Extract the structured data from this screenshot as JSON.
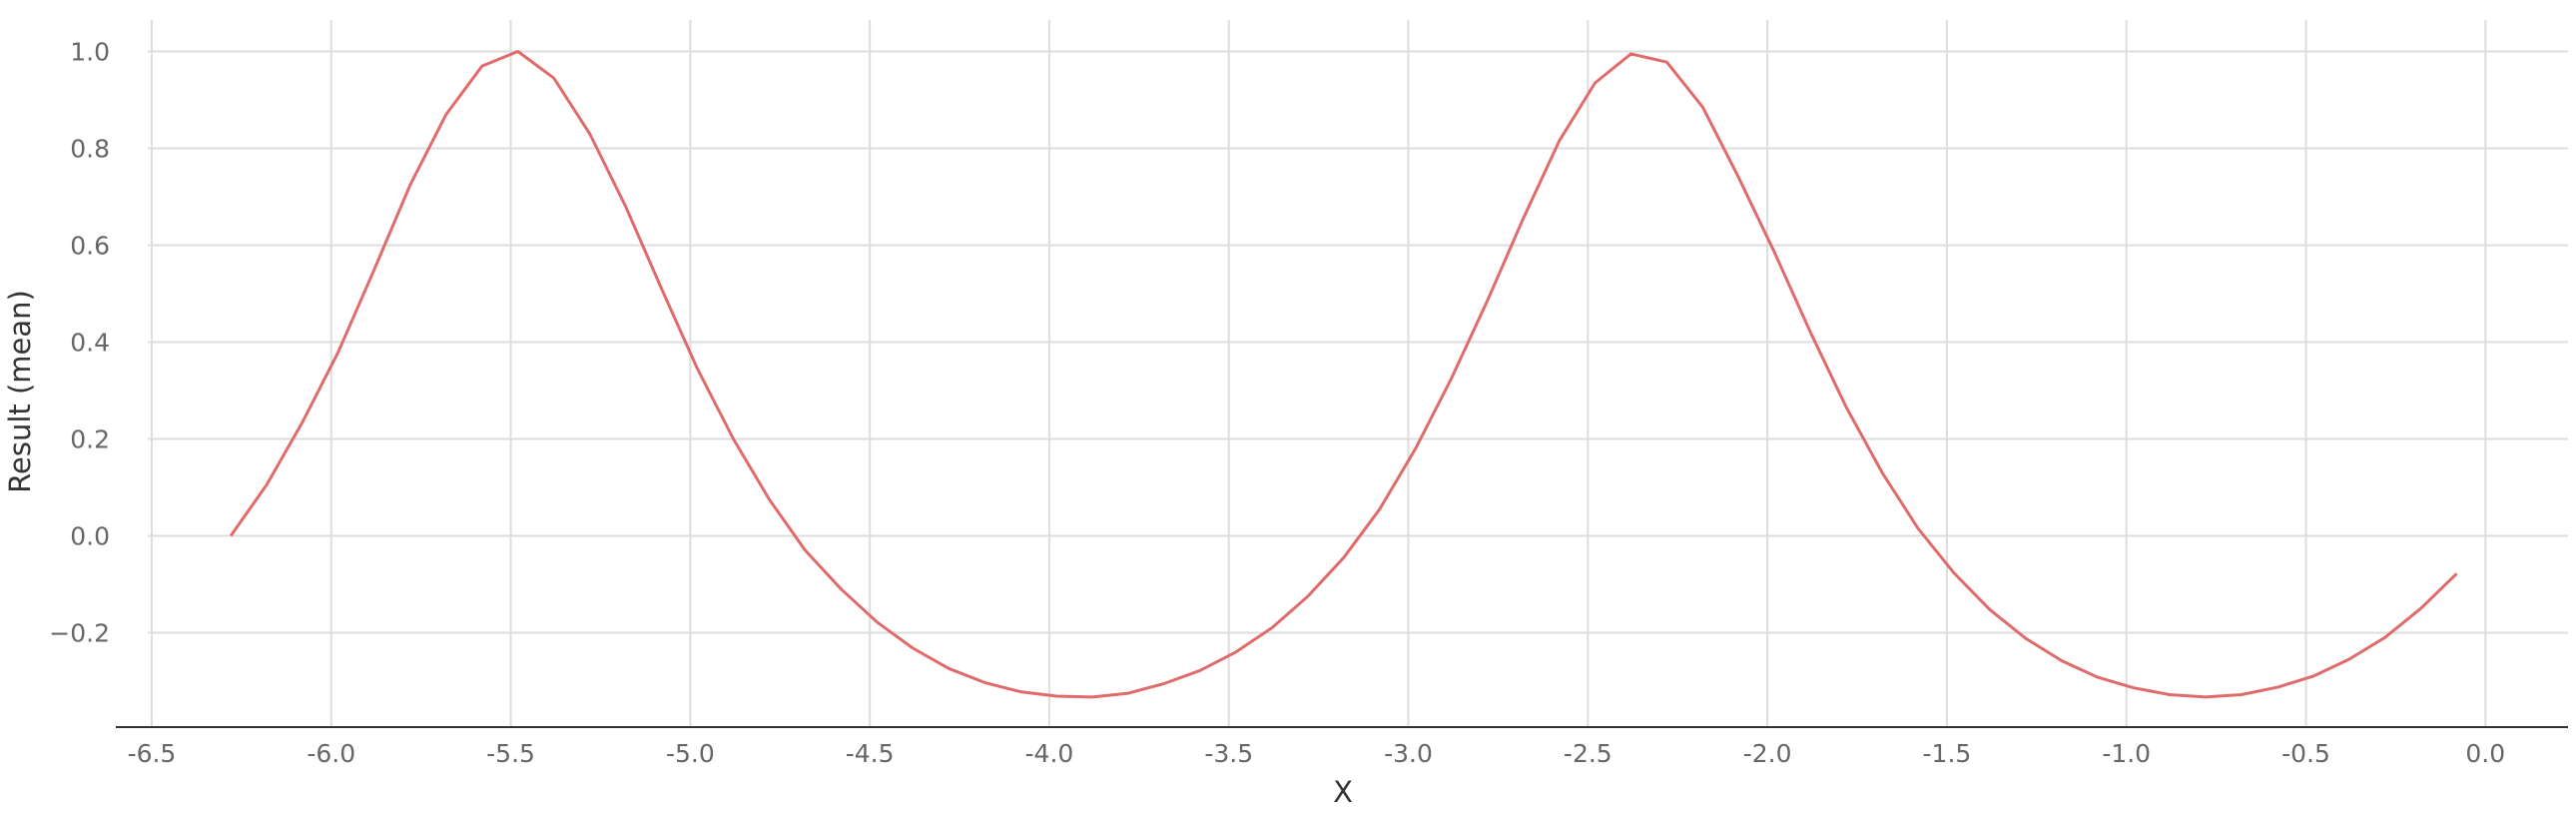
{
  "chart_data": {
    "type": "line",
    "xlabel": "X",
    "ylabel": "Result (mean)",
    "xlim": [
      -6.6,
      0.23
    ],
    "ylim": [
      -0.395,
      1.065
    ],
    "xticks": [
      -6.5,
      -6.0,
      -5.5,
      -5.0,
      -4.5,
      -4.0,
      -3.5,
      -3.0,
      -2.5,
      -2.0,
      -1.5,
      -1.0,
      -0.5,
      0.0
    ],
    "xtick_labels": [
      "-6.5",
      "-6.0",
      "-5.5",
      "-5.0",
      "-4.5",
      "-4.0",
      "-3.5",
      "-3.0",
      "-2.5",
      "-2.0",
      "-1.5",
      "-1.0",
      "-0.5",
      "0.0"
    ],
    "yticks": [
      1.0,
      0.8,
      0.6,
      0.4,
      0.2,
      0.0,
      -0.2
    ],
    "ytick_labels": [
      "1.0",
      "0.8",
      "0.6",
      "0.4",
      "0.2",
      "0.0",
      "−0.2"
    ],
    "grid": true,
    "color": "#e06b6b",
    "series": [
      {
        "x": [
          -6.28,
          -6.18,
          -6.08,
          -5.98,
          -5.88,
          -5.78,
          -5.68,
          -5.58,
          -5.48,
          -5.38,
          -5.28,
          -5.18,
          -5.08,
          -4.98,
          -4.88,
          -4.78,
          -4.68,
          -4.58,
          -4.48,
          -4.38,
          -4.28,
          -4.18,
          -4.08,
          -3.98,
          -3.88,
          -3.78,
          -3.68,
          -3.58,
          -3.48,
          -3.38,
          -3.28,
          -3.18,
          -3.08,
          -2.98,
          -2.88,
          -2.78,
          -2.68,
          -2.58,
          -2.48,
          -2.38,
          -2.28,
          -2.18,
          -2.08,
          -1.98,
          -1.88,
          -1.78,
          -1.68,
          -1.58,
          -1.48,
          -1.38,
          -1.28,
          -1.18,
          -1.08,
          -0.98,
          -0.88,
          -0.78,
          -0.68,
          -0.58,
          -0.48,
          -0.38,
          -0.28,
          -0.18,
          -0.08
        ],
        "values": [
          0.0,
          0.105,
          0.235,
          0.38,
          0.55,
          0.725,
          0.87,
          0.97,
          1.0,
          0.945,
          0.83,
          0.68,
          0.51,
          0.345,
          0.2,
          0.075,
          -0.03,
          -0.11,
          -0.178,
          -0.232,
          -0.274,
          -0.303,
          -0.322,
          -0.331,
          -0.333,
          -0.325,
          -0.305,
          -0.278,
          -0.24,
          -0.19,
          -0.125,
          -0.045,
          0.055,
          0.18,
          0.325,
          0.485,
          0.655,
          0.815,
          0.935,
          0.995,
          0.978,
          0.885,
          0.74,
          0.585,
          0.42,
          0.265,
          0.13,
          0.015,
          -0.077,
          -0.153,
          -0.212,
          -0.258,
          -0.292,
          -0.314,
          -0.328,
          -0.333,
          -0.328,
          -0.313,
          -0.29,
          -0.255,
          -0.21,
          -0.15,
          -0.078
        ]
      }
    ]
  }
}
